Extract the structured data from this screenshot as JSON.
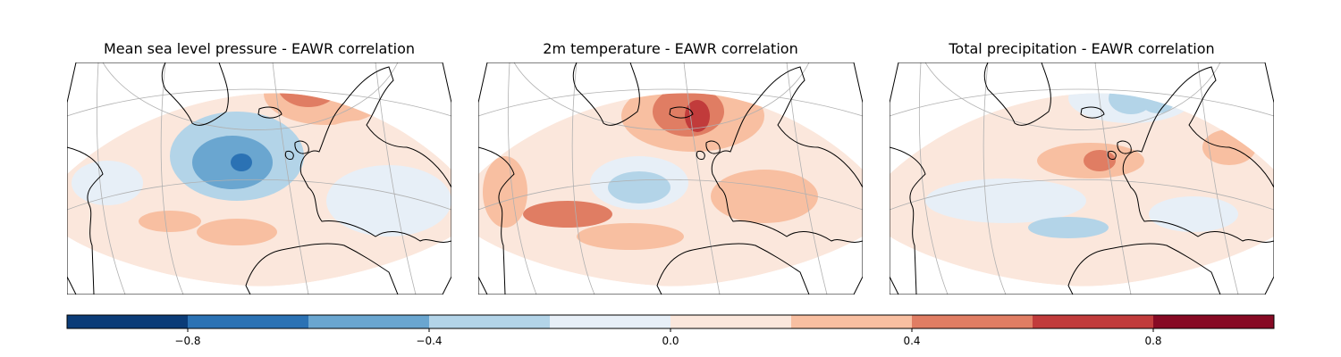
{
  "panels": [
    {
      "title": "Mean sea level pressure - EAWR correlation",
      "pattern": "mslp"
    },
    {
      "title": "2m temperature - EAWR correlation",
      "pattern": "t2m"
    },
    {
      "title": "Total precipitation - EAWR correlation",
      "pattern": "tp"
    }
  ],
  "colorbar": {
    "colormap": "RdBu_r",
    "range": [
      -1.0,
      1.0
    ],
    "levels": [
      -1.0,
      -0.8,
      -0.6,
      -0.4,
      -0.2,
      0.0,
      0.2,
      0.4,
      0.6,
      0.8,
      1.0
    ],
    "colors": [
      "#0b3c78",
      "#2b72b4",
      "#6aa6d0",
      "#b3d4e8",
      "#e7eff7",
      "#fbe7dc",
      "#f8bfa1",
      "#e07d63",
      "#c13b3b",
      "#870a24"
    ],
    "tick_values": [
      -0.8,
      -0.4,
      0.0,
      0.4,
      0.8
    ],
    "tick_labels": [
      "−0.8",
      "−0.4",
      "0.0",
      "0.4",
      "0.8"
    ]
  },
  "colors": {
    "coastline": "#000000",
    "gridline": "#b0b0b0",
    "frame": "#000000"
  }
}
